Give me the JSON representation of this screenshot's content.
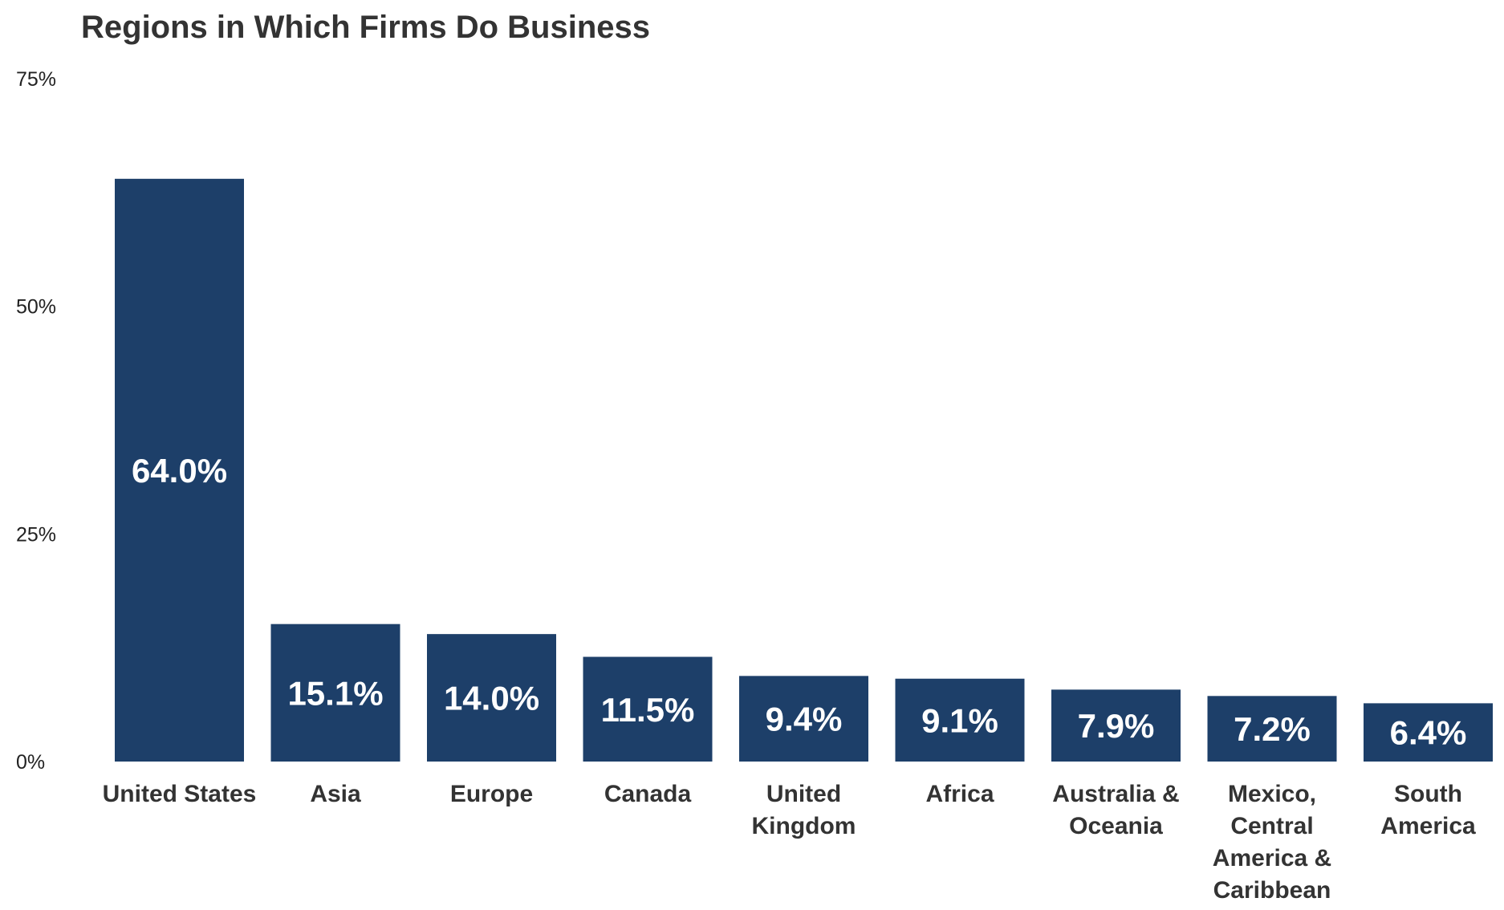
{
  "chart_data": {
    "type": "bar",
    "title": "Regions in Which Firms Do Business",
    "categories": [
      "United States",
      "Asia",
      "Europe",
      "Canada",
      "United Kingdom",
      "Africa",
      "Australia & Oceania",
      "Mexico, Central America & Caribbean",
      "South America"
    ],
    "category_lines": [
      [
        "United States"
      ],
      [
        "Asia"
      ],
      [
        "Europe"
      ],
      [
        "Canada"
      ],
      [
        "United",
        "Kingdom"
      ],
      [
        "Africa"
      ],
      [
        "Australia &",
        "Oceania"
      ],
      [
        "Mexico,",
        "Central",
        "America &",
        "Caribbean"
      ],
      [
        "South",
        "America"
      ]
    ],
    "values": [
      64.0,
      15.1,
      14.0,
      11.5,
      9.4,
      9.1,
      7.9,
      7.2,
      6.4
    ],
    "data_labels": [
      "64.0%",
      "15.1%",
      "14.0%",
      "11.5%",
      "9.4%",
      "9.1%",
      "7.9%",
      "7.2%",
      "6.4%"
    ],
    "yticks": [
      0,
      25,
      50,
      75
    ],
    "ytick_labels": [
      "0%",
      "25%",
      "50%",
      "75%"
    ],
    "ylim": [
      0,
      75
    ],
    "grid": false,
    "colors": {
      "bar": "#1d3f69",
      "title": "#333333",
      "bar_label": "#ffffff"
    }
  }
}
